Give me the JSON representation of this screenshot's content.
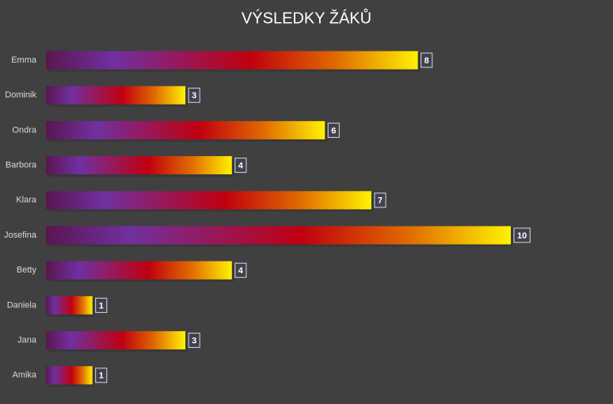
{
  "chart_data": {
    "type": "bar",
    "orientation": "horizontal",
    "title": "VÝSLEDKY ŽÁKŮ",
    "categories": [
      "Emma",
      "Dominik",
      "Ondra",
      "Barbora",
      "Klara",
      "Josefina",
      "Betty",
      "Daniela",
      "Jana",
      "Amika"
    ],
    "values": [
      8,
      3,
      6,
      4,
      7,
      10,
      4,
      1,
      3,
      1
    ],
    "colors": [
      "#5a1650",
      "#7030a0",
      "#c00010",
      "#e06a00",
      "#fff200"
    ],
    "data_labels": true
  }
}
